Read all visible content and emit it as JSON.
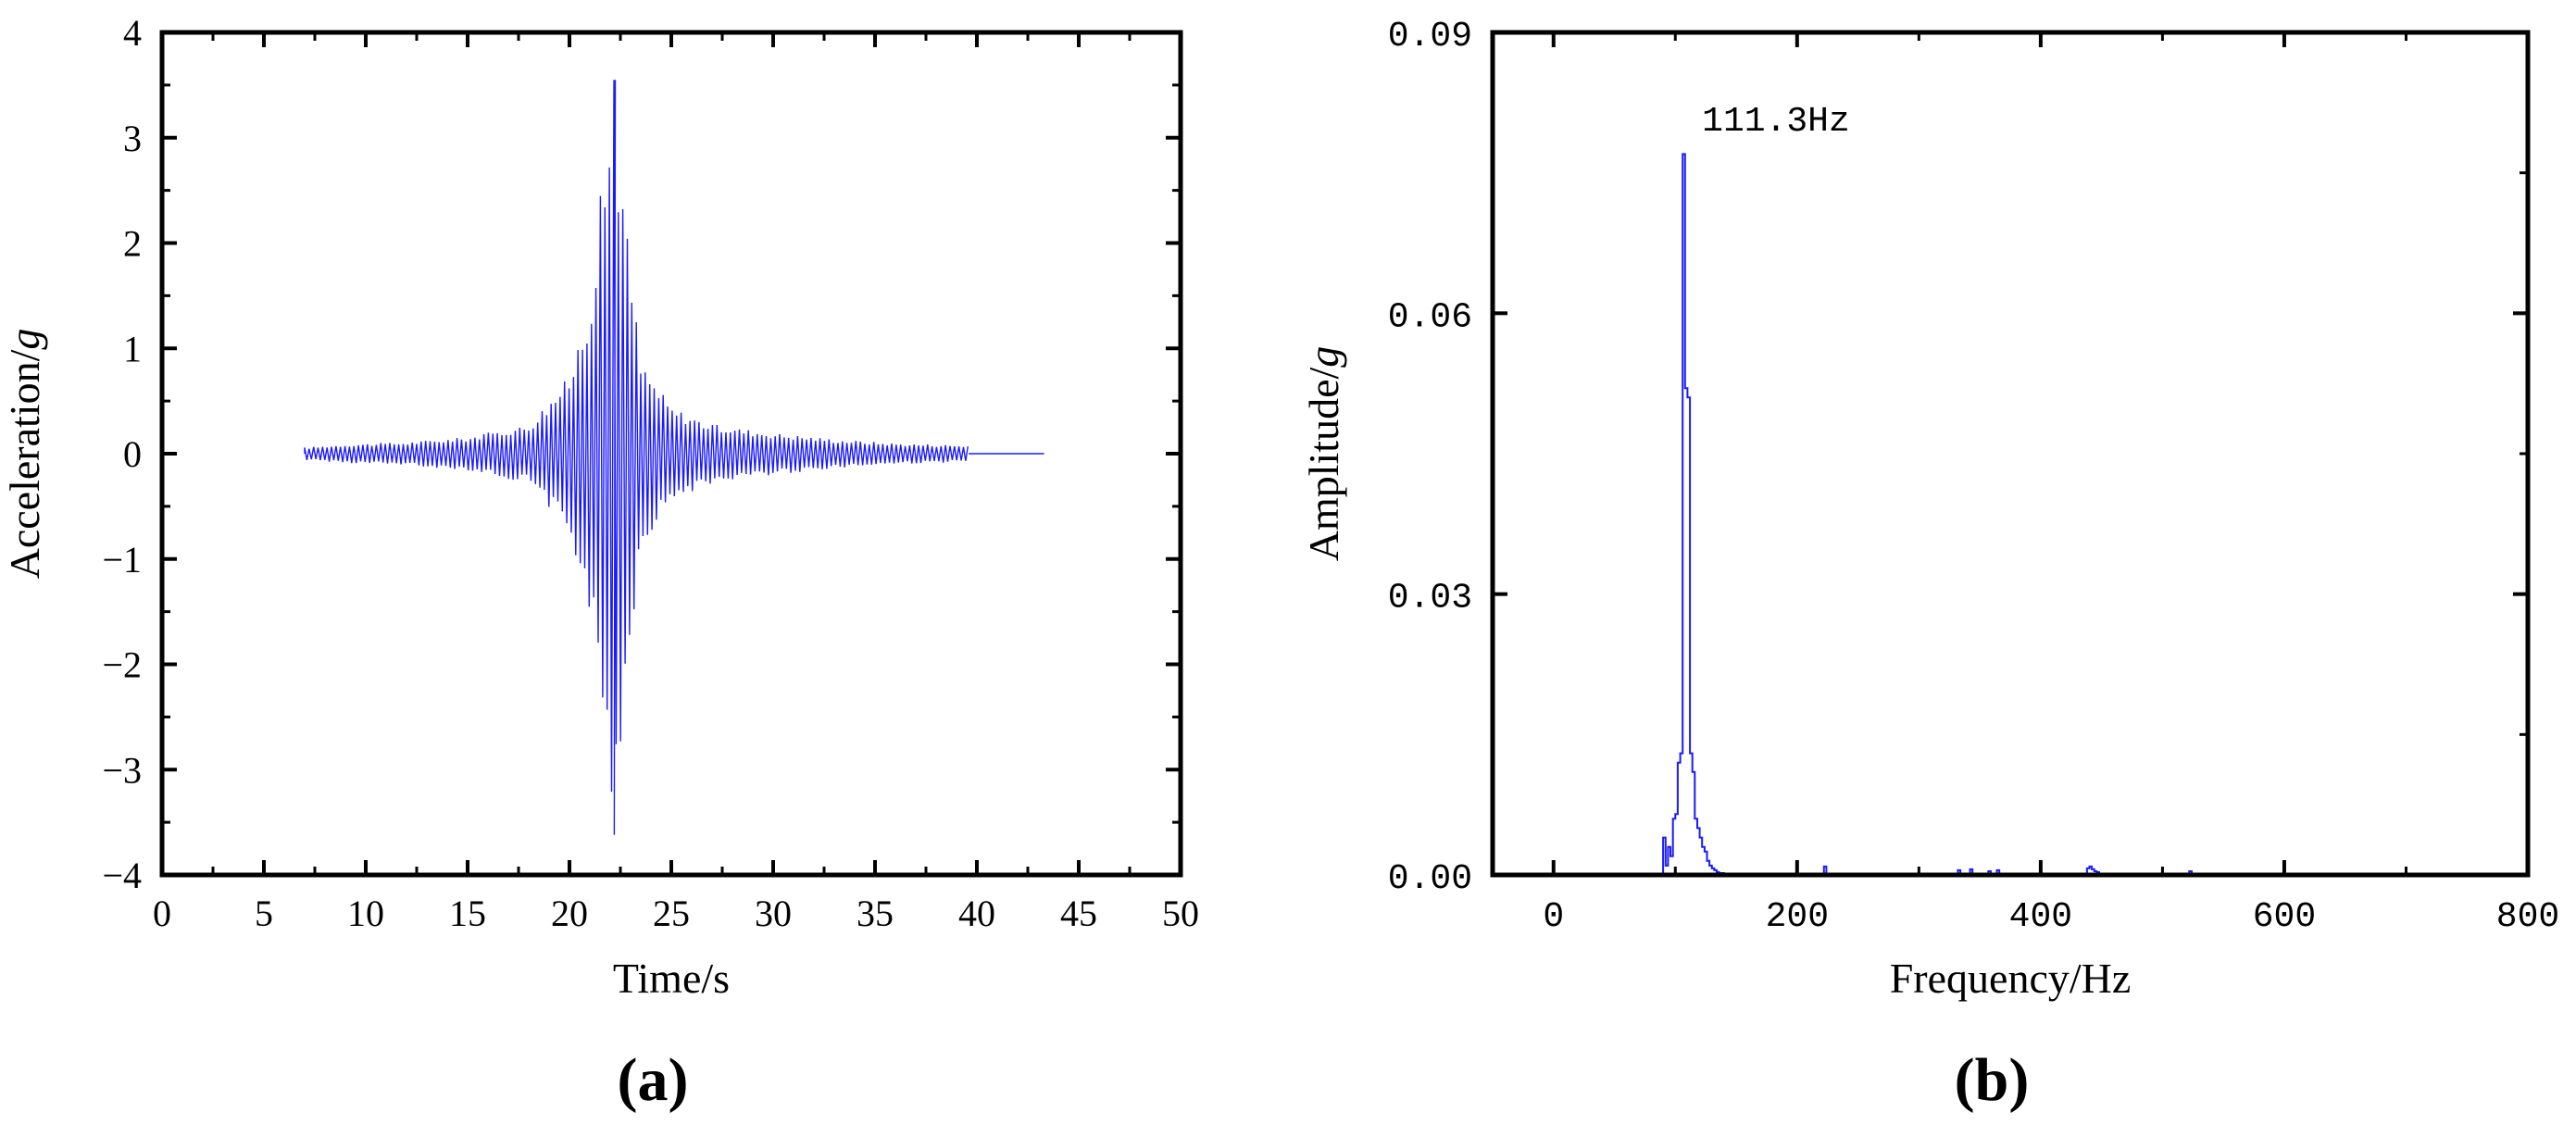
{
  "chart_data": [
    {
      "type": "line",
      "panel_label": "(a)",
      "xlabel": "Time/s",
      "ylabel_main": "Acceleration/",
      "ylabel_unit": "g",
      "xlim": [
        0,
        50
      ],
      "ylim": [
        -4,
        4
      ],
      "xticks": [
        0,
        5,
        10,
        15,
        20,
        25,
        30,
        35,
        40,
        45,
        50
      ],
      "xtick_labels": [
        "0",
        "5",
        "10",
        "15",
        "20",
        "25",
        "30",
        "35",
        "40",
        "45",
        "50"
      ],
      "yticks": [
        4,
        3,
        2,
        1,
        0,
        -1,
        -2,
        -3,
        -4
      ],
      "ytick_labels": [
        "4",
        "3",
        "2",
        "1",
        "0",
        "−1",
        "−2",
        "−3",
        "−4"
      ],
      "series": [
        {
          "name": "acceleration",
          "color": "#1a1aff",
          "signal_start": 7.0,
          "signal_end": 39.6,
          "flat_end": 43.3,
          "peak_time": 22.2,
          "peak_max": 3.55,
          "peak_min": -3.62,
          "envelope": [
            [
              7.0,
              0.06
            ],
            [
              9,
              0.09
            ],
            [
              12,
              0.11
            ],
            [
              15,
              0.16
            ],
            [
              18,
              0.28
            ],
            [
              20,
              0.75
            ],
            [
              21,
              1.55
            ],
            [
              21.6,
              2.6
            ],
            [
              22.2,
              3.55
            ],
            [
              22.8,
              2.2
            ],
            [
              23.5,
              0.9
            ],
            [
              25,
              0.45
            ],
            [
              27,
              0.28
            ],
            [
              30,
              0.2
            ],
            [
              33,
              0.14
            ],
            [
              36,
              0.1
            ],
            [
              39.6,
              0.08
            ]
          ]
        }
      ]
    },
    {
      "type": "line",
      "panel_label": "(b)",
      "xlabel": "Frequency/Hz",
      "ylabel_main": "Amplitude/",
      "ylabel_unit": "g",
      "xlim": [
        -50,
        800
      ],
      "ylim": [
        0,
        0.09
      ],
      "xticks": [
        0,
        200,
        400,
        600,
        800
      ],
      "xtick_labels": [
        "0",
        "200",
        "400",
        "600",
        "800"
      ],
      "yticks": [
        0.09,
        0.06,
        0.03,
        0.0
      ],
      "ytick_labels": [
        "0.09",
        "0.06",
        "0.03",
        "0.00"
      ],
      "annotation": "111.3Hz",
      "annotation_x": 111.3,
      "series": [
        {
          "name": "spectrum",
          "color": "#1a1aff",
          "x": [
            0,
            88,
            90,
            92,
            94,
            96,
            98,
            100,
            102,
            104,
            106,
            108,
            110,
            112,
            114,
            116,
            118,
            120,
            122,
            124,
            126,
            128,
            130,
            132,
            134,
            136,
            138,
            140,
            142,
            144,
            150,
            220,
            222,
            224,
            330,
            332,
            334,
            340,
            342,
            344,
            355,
            357,
            359,
            362,
            364,
            366,
            436,
            438,
            440,
            442,
            444,
            446,
            448,
            520,
            522,
            524,
            600
          ],
          "y": [
            0,
            0,
            0.004,
            0.001,
            0.003,
            0.002,
            0.006,
            0.0065,
            0.012,
            0.013,
            0.077,
            0.052,
            0.051,
            0.013,
            0.011,
            0.006,
            0.005,
            0.004,
            0.003,
            0.0025,
            0.0015,
            0.001,
            0.0007,
            0.0005,
            0.0003,
            0.0002,
            0.0002,
            0.0001,
            0,
            0,
            0,
            0,
            0.0009,
            0,
            0,
            0.0005,
            0,
            0,
            0.0006,
            0,
            0,
            0.0004,
            0,
            0,
            0.0005,
            0,
            0,
            0.0007,
            0.0009,
            0.0006,
            0.0004,
            0.0003,
            0,
            0,
            0.0004,
            0,
            0
          ]
        }
      ]
    }
  ]
}
